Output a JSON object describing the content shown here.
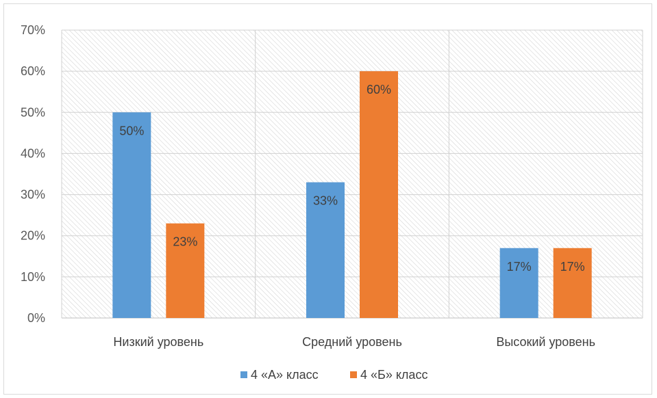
{
  "chart_data": {
    "type": "bar",
    "categories": [
      "Низкий уровень",
      "Средний уровень",
      "Высокий уровень"
    ],
    "series": [
      {
        "name": "4 «А» класс",
        "values": [
          0.5,
          0.33,
          0.17
        ],
        "labels": [
          "50%",
          "33%",
          "17%"
        ],
        "color": "#5b9bd5"
      },
      {
        "name": "4 «Б» класс",
        "values": [
          0.23,
          0.6,
          0.17
        ],
        "labels": [
          "23%",
          "60%",
          "17%"
        ],
        "color": "#ed7d31"
      }
    ],
    "ylim": [
      0,
      0.7
    ],
    "yticks": [
      0,
      0.1,
      0.2,
      0.3,
      0.4,
      0.5,
      0.6,
      0.7
    ],
    "ytick_labels": [
      "0%",
      "10%",
      "20%",
      "30%",
      "40%",
      "50%",
      "60%",
      "70%"
    ],
    "grid": true,
    "legend_position": "bottom",
    "title": "",
    "xlabel": "",
    "ylabel": ""
  }
}
